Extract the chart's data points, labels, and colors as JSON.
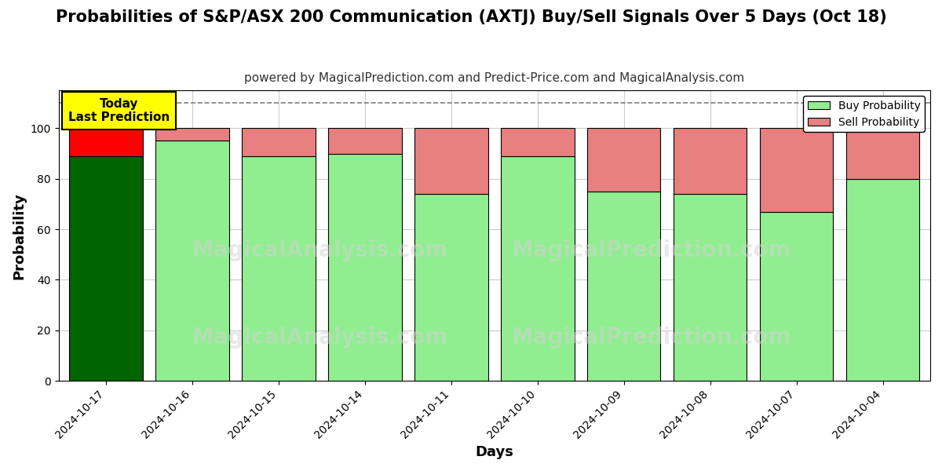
{
  "title": "Probabilities of S&P/ASX 200 Communication (AXTJ) Buy/Sell Signals Over 5 Days (Oct 18)",
  "subtitle": "powered by MagicalPrediction.com and Predict-Price.com and MagicalAnalysis.com",
  "xlabel": "Days",
  "ylabel": "Probability",
  "dates": [
    "2024-10-17",
    "2024-10-16",
    "2024-10-15",
    "2024-10-14",
    "2024-10-11",
    "2024-10-10",
    "2024-10-09",
    "2024-10-08",
    "2024-10-07",
    "2024-10-04"
  ],
  "buy_values": [
    89,
    95,
    89,
    90,
    74,
    89,
    75,
    74,
    67,
    80
  ],
  "sell_values": [
    11,
    5,
    11,
    10,
    26,
    11,
    25,
    26,
    33,
    20
  ],
  "today_buy_color": "#006400",
  "today_sell_color": "#ff0000",
  "buy_color": "#90EE90",
  "sell_color": "#E88080",
  "today_annotation_bg": "#ffff00",
  "today_annotation_text": "Today\nLast Prediction",
  "dashed_line_y": 110,
  "ylim": [
    0,
    115
  ],
  "legend_buy_label": "Buy Probability",
  "legend_sell_label": "Sell Probability",
  "bg_color": "#ffffff",
  "grid_color": "#cccccc",
  "title_fontsize": 15,
  "subtitle_fontsize": 11,
  "axis_label_fontsize": 13,
  "tick_fontsize": 10,
  "bar_width": 0.85
}
